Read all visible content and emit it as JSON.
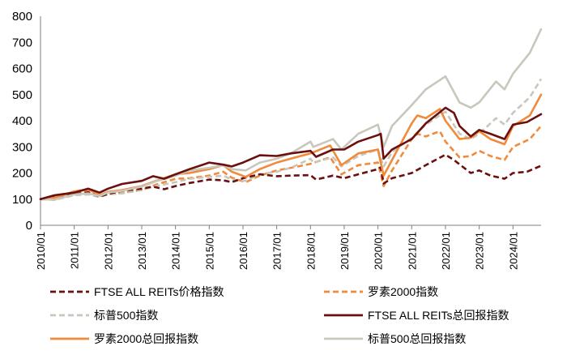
{
  "chart_data": {
    "type": "line",
    "ylim": [
      0,
      800
    ],
    "yticks": [
      "0",
      "100",
      "200",
      "300",
      "400",
      "500",
      "600",
      "700",
      "800"
    ],
    "xticks": [
      "2010/01",
      "2011/01",
      "2012/01",
      "2013/01",
      "2014/01",
      "2015/01",
      "2016/01",
      "2017/01",
      "2018/01",
      "2019/01",
      "2020/01",
      "2021/01",
      "2022/01",
      "2023/01",
      "2024/01"
    ],
    "x_range": [
      "2010/01",
      "2024/11"
    ],
    "grid": false,
    "legend_position": "bottom",
    "series": [
      {
        "name": "FTSE ALL REITs价格指数",
        "color": "#6B0F0F",
        "dash": "dashed",
        "x": [
          "2010/01",
          "2010/06",
          "2011/01",
          "2011/06",
          "2011/10",
          "2012/01",
          "2012/06",
          "2013/01",
          "2013/05",
          "2013/09",
          "2014/01",
          "2014/06",
          "2015/01",
          "2015/06",
          "2015/09",
          "2016/01",
          "2016/07",
          "2017/01",
          "2017/06",
          "2018/01",
          "2018/03",
          "2018/09",
          "2019/01",
          "2019/06",
          "2020/01",
          "2020/02",
          "2020/03",
          "2020/06",
          "2021/01",
          "2021/06",
          "2022/01",
          "2022/04",
          "2022/10",
          "2023/01",
          "2023/05",
          "2023/10",
          "2024/01",
          "2024/06",
          "2024/11"
        ],
        "values": [
          100,
          110,
          118,
          126,
          110,
          120,
          132,
          140,
          148,
          138,
          150,
          162,
          175,
          172,
          165,
          180,
          195,
          188,
          190,
          192,
          175,
          190,
          180,
          195,
          215,
          222,
          160,
          180,
          200,
          230,
          270,
          250,
          200,
          210,
          190,
          178,
          200,
          205,
          228
        ]
      },
      {
        "name": "罗素2000指数",
        "color": "#F08A3C",
        "dash": "dashed",
        "x": [
          "2010/01",
          "2010/06",
          "2011/01",
          "2011/06",
          "2011/10",
          "2012/01",
          "2012/06",
          "2013/01",
          "2013/06",
          "2014/01",
          "2014/06",
          "2015/01",
          "2015/06",
          "2015/09",
          "2016/02",
          "2016/07",
          "2017/01",
          "2017/06",
          "2018/01",
          "2018/08",
          "2018/12",
          "2019/06",
          "2020/01",
          "2020/03",
          "2020/06",
          "2021/01",
          "2021/03",
          "2021/06",
          "2021/11",
          "2022/01",
          "2022/06",
          "2022/10",
          "2023/01",
          "2023/05",
          "2023/10",
          "2024/01",
          "2024/07",
          "2024/11"
        ],
        "values": [
          100,
          102,
          125,
          130,
          110,
          120,
          125,
          135,
          155,
          178,
          180,
          190,
          205,
          182,
          165,
          190,
          210,
          220,
          235,
          260,
          195,
          230,
          240,
          150,
          210,
          330,
          350,
          340,
          360,
          320,
          260,
          265,
          285,
          265,
          250,
          300,
          330,
          380
        ]
      },
      {
        "name": "标普500指数",
        "color": "#C9C7BC",
        "dash": "dashed",
        "x": [
          "2010/01",
          "2010/06",
          "2011/01",
          "2011/06",
          "2011/10",
          "2012/01",
          "2012/06",
          "2013/01",
          "2013/06",
          "2014/01",
          "2014/06",
          "2015/01",
          "2015/06",
          "2015/09",
          "2016/02",
          "2016/07",
          "2017/01",
          "2017/06",
          "2018/01",
          "2018/02",
          "2018/09",
          "2018/12",
          "2019/06",
          "2020/01",
          "2020/03",
          "2020/06",
          "2021/01",
          "2021/06",
          "2022/01",
          "2022/06",
          "2022/10",
          "2023/01",
          "2023/07",
          "2023/10",
          "2024/01",
          "2024/07",
          "2024/11"
        ],
        "values": [
          100,
          97,
          115,
          118,
          108,
          118,
          122,
          135,
          150,
          165,
          178,
          185,
          190,
          175,
          170,
          195,
          205,
          220,
          255,
          240,
          260,
          225,
          265,
          290,
          225,
          280,
          335,
          385,
          435,
          350,
          330,
          350,
          410,
          385,
          430,
          490,
          560
        ]
      },
      {
        "name": "FTSE ALL REITs总回报指数",
        "color": "#6B0F0F",
        "dash": "solid",
        "x": [
          "2010/01",
          "2010/06",
          "2011/01",
          "2011/06",
          "2011/10",
          "2012/01",
          "2012/06",
          "2013/01",
          "2013/05",
          "2013/09",
          "2014/01",
          "2014/06",
          "2015/01",
          "2015/06",
          "2015/09",
          "2016/01",
          "2016/07",
          "2017/01",
          "2017/06",
          "2018/01",
          "2018/03",
          "2018/09",
          "2019/01",
          "2019/06",
          "2020/01",
          "2020/02",
          "2020/03",
          "2020/06",
          "2021/01",
          "2021/06",
          "2022/01",
          "2022/04",
          "2022/06",
          "2022/10",
          "2023/01",
          "2023/05",
          "2023/10",
          "2024/01",
          "2024/06",
          "2024/11"
        ],
        "values": [
          100,
          115,
          125,
          140,
          125,
          140,
          158,
          170,
          188,
          178,
          195,
          215,
          240,
          232,
          225,
          240,
          268,
          265,
          275,
          285,
          262,
          290,
          290,
          320,
          345,
          350,
          255,
          290,
          330,
          390,
          450,
          430,
          380,
          340,
          365,
          350,
          330,
          385,
          395,
          425
        ]
      },
      {
        "name": "罗素2000总回报指数",
        "color": "#F08A3C",
        "dash": "solid",
        "x": [
          "2010/01",
          "2010/06",
          "2011/01",
          "2011/06",
          "2011/10",
          "2012/01",
          "2012/06",
          "2013/01",
          "2013/06",
          "2014/01",
          "2014/06",
          "2015/01",
          "2015/06",
          "2015/09",
          "2016/02",
          "2016/07",
          "2017/01",
          "2017/06",
          "2018/01",
          "2018/08",
          "2018/12",
          "2019/06",
          "2020/01",
          "2020/03",
          "2020/06",
          "2021/01",
          "2021/03",
          "2021/06",
          "2021/11",
          "2022/01",
          "2022/06",
          "2022/10",
          "2023/01",
          "2023/05",
          "2023/10",
          "2024/01",
          "2024/07",
          "2024/11"
        ],
        "values": [
          100,
          105,
          130,
          138,
          115,
          128,
          135,
          150,
          170,
          195,
          200,
          215,
          230,
          205,
          185,
          215,
          240,
          255,
          275,
          305,
          230,
          275,
          290,
          190,
          250,
          390,
          420,
          410,
          445,
          400,
          330,
          335,
          360,
          330,
          310,
          380,
          420,
          500
        ]
      },
      {
        "name": "标普500总回报指数",
        "color": "#C9C7BC",
        "dash": "solid",
        "x": [
          "2010/01",
          "2010/06",
          "2011/01",
          "2011/06",
          "2011/10",
          "2012/01",
          "2012/06",
          "2013/01",
          "2013/06",
          "2014/01",
          "2014/06",
          "2015/01",
          "2015/06",
          "2015/09",
          "2016/02",
          "2016/07",
          "2017/01",
          "2017/06",
          "2018/01",
          "2018/02",
          "2018/09",
          "2018/12",
          "2019/06",
          "2020/01",
          "2020/03",
          "2020/06",
          "2021/01",
          "2021/06",
          "2022/01",
          "2022/06",
          "2022/10",
          "2023/01",
          "2023/07",
          "2023/10",
          "2024/01",
          "2024/07",
          "2024/11"
        ],
        "values": [
          100,
          98,
          118,
          122,
          112,
          125,
          132,
          148,
          168,
          190,
          210,
          220,
          230,
          215,
          210,
          240,
          255,
          275,
          320,
          300,
          330,
          290,
          350,
          385,
          300,
          380,
          460,
          520,
          570,
          470,
          450,
          470,
          550,
          520,
          580,
          660,
          750
        ]
      }
    ]
  }
}
